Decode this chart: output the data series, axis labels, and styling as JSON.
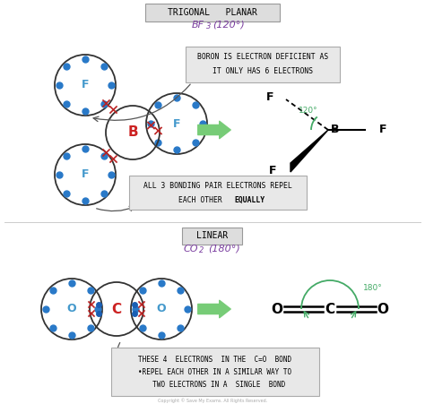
{
  "bg_color": "#ffffff",
  "title1": "TRIGONAL   PLANAR",
  "subtitle1_color": "#7b3fa0",
  "title2": "LINEAR",
  "subtitle2_color": "#7b3fa0",
  "atom_color": "#2979c8",
  "cross_color": "#bb2222",
  "dot_color": "#1a5fb4",
  "label_color_B": "#cc2222",
  "label_color_F": "#4499cc",
  "label_color_C": "#cc2222",
  "label_color_O": "#4499cc",
  "arrow_color": "#77cc77",
  "angle_color": "#44aa66",
  "box_edge": "#aaaaaa",
  "box_face": "#e8e8e8",
  "title_edge": "#999999",
  "title_face": "#dddddd",
  "copyright": "Copyright © Save My Exams. All Rights Reserved."
}
